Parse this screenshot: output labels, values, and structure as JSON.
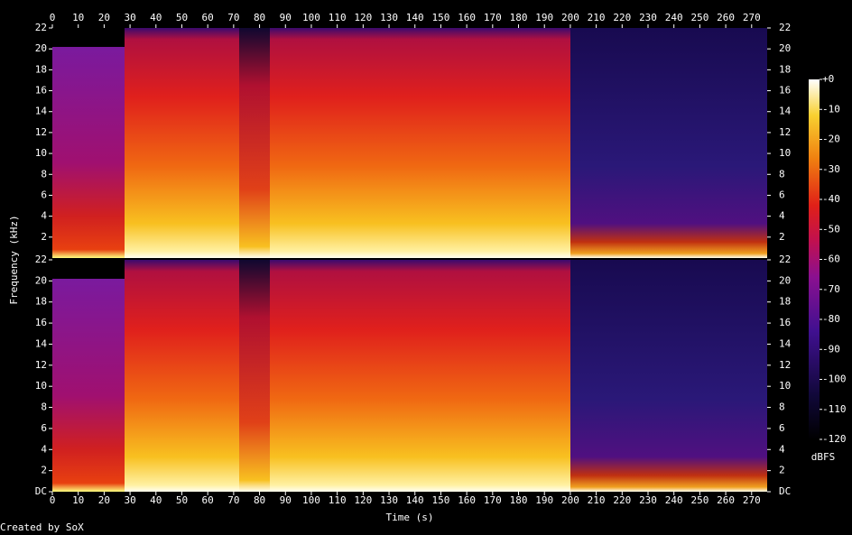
{
  "chart_data": {
    "type": "spectrogram",
    "xlabel": "Time (s)",
    "ylabel": "Frequency (kHz)",
    "colorbar_label": "dBFS",
    "credit": "Created by SoX",
    "xlim": [
      0,
      276
    ],
    "xticks": [
      0,
      10,
      20,
      30,
      40,
      50,
      60,
      70,
      80,
      90,
      100,
      110,
      120,
      130,
      140,
      150,
      160,
      170,
      180,
      190,
      200,
      210,
      220,
      230,
      240,
      250,
      260,
      270
    ],
    "ylim": [
      0,
      22
    ],
    "yticks_upper": [
      2,
      4,
      6,
      8,
      10,
      12,
      14,
      16,
      18,
      20,
      22
    ],
    "yticks_lower": [
      {
        "value": 0,
        "label": "DC"
      },
      2,
      4,
      6,
      8,
      10,
      12,
      14,
      16,
      18,
      20,
      22
    ],
    "clim": [
      -120,
      0
    ],
    "cticks": [
      {
        "value": 0,
        "label": "+0"
      },
      -10,
      -20,
      -30,
      -40,
      -50,
      -60,
      -70,
      -80,
      -90,
      -100,
      -110,
      -120
    ]
  }
}
